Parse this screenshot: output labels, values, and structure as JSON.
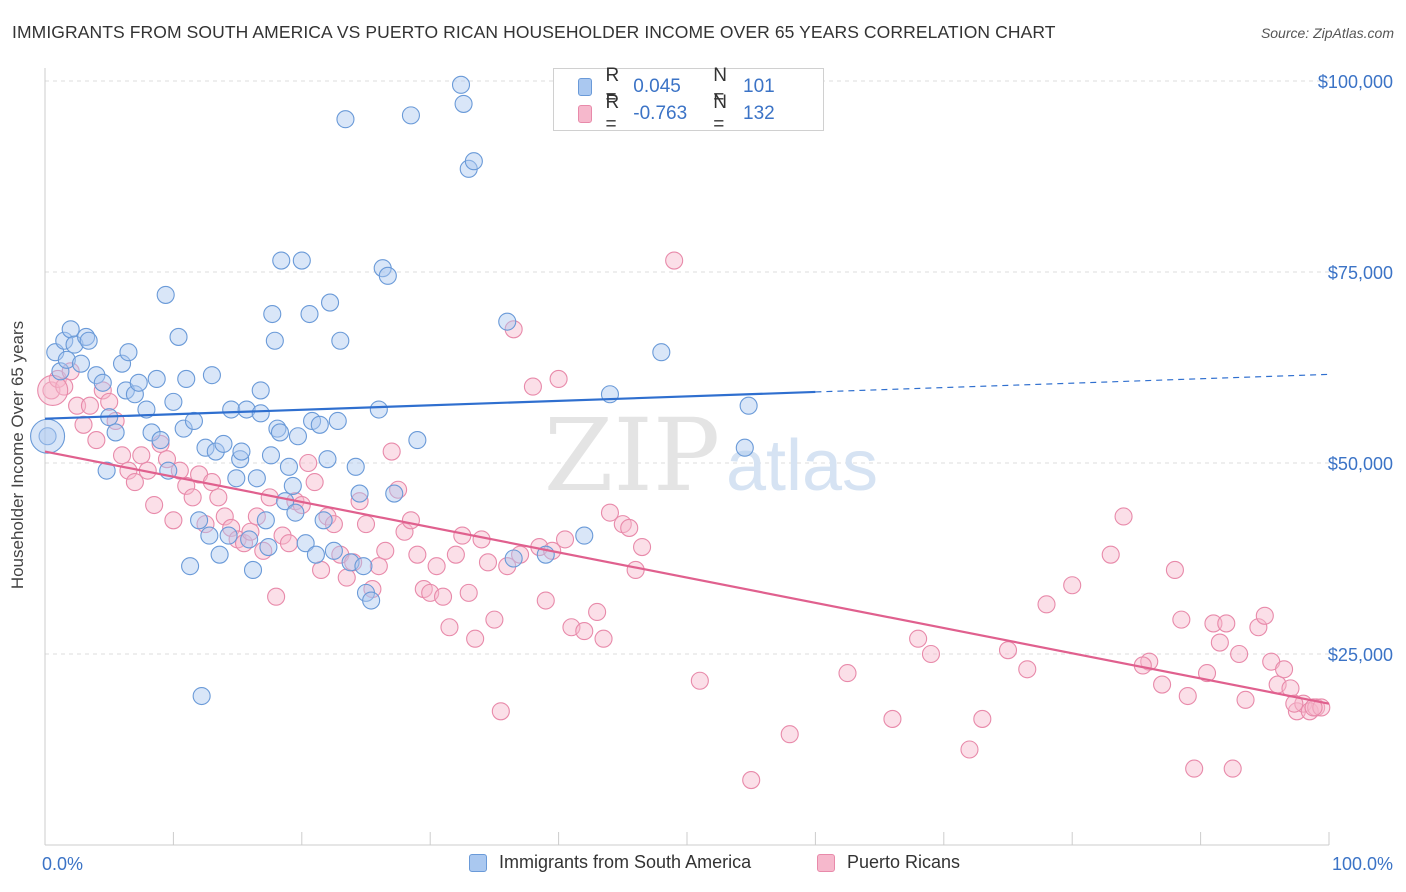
{
  "header": {
    "title": "IMMIGRANTS FROM SOUTH AMERICA VS PUERTO RICAN HOUSEHOLDER INCOME OVER 65 YEARS CORRELATION CHART",
    "source": "Source: ZipAtlas.com"
  },
  "watermark": {
    "zip": "ZIP",
    "atlas": "atlas"
  },
  "legend_top": {
    "rows": [
      {
        "r_label": "R =",
        "r_value": "0.045",
        "n_label": "N =",
        "n_value": "101"
      },
      {
        "r_label": "R =",
        "r_value": "-0.763",
        "n_label": "N =",
        "n_value": "132"
      }
    ]
  },
  "legend_bottom": {
    "items": [
      {
        "label": "Immigrants from South America"
      },
      {
        "label": "Puerto Ricans"
      }
    ]
  },
  "colors": {
    "blue_fill": "#aac8f0",
    "blue_stroke": "#6a9ad8",
    "blue_line": "#2f6fcf",
    "pink_fill": "#f6b8cc",
    "pink_stroke": "#e88aaa",
    "pink_line": "#e0608e",
    "tick_label": "#3b73c6",
    "grid": "#dcdcdc"
  },
  "chart_data": {
    "type": "scatter",
    "xlabel": "",
    "ylabel": "Householder Income Over 65 years",
    "xlim": [
      0,
      100
    ],
    "ylim": [
      0,
      105000
    ],
    "x_tick_labels": [
      "0.0%",
      "100.0%"
    ],
    "y_ticks": [
      25000,
      50000,
      75000,
      100000
    ],
    "y_tick_labels": [
      "$25,000",
      "$50,000",
      "$75,000",
      "$100,000"
    ],
    "grid": "horizontal dashed",
    "legend": "top-center",
    "series": [
      {
        "name": "Immigrants from South America",
        "color": "#aac8f0",
        "trend": {
          "x": [
            0,
            60,
            100
          ],
          "y": [
            55800,
            59300,
            61600
          ],
          "dashed_from": 60
        },
        "points": [
          [
            0.2,
            53500
          ],
          [
            0.8,
            64500
          ],
          [
            1.2,
            62000
          ],
          [
            1.5,
            66000
          ],
          [
            1.7,
            63500
          ],
          [
            2.0,
            67500
          ],
          [
            2.3,
            65500
          ],
          [
            2.8,
            63000
          ],
          [
            3.2,
            66500
          ],
          [
            3.4,
            66000
          ],
          [
            4.0,
            61500
          ],
          [
            4.5,
            60500
          ],
          [
            4.8,
            49000
          ],
          [
            5.0,
            56000
          ],
          [
            5.5,
            54000
          ],
          [
            6.0,
            63000
          ],
          [
            6.3,
            59500
          ],
          [
            6.5,
            64500
          ],
          [
            7.0,
            59000
          ],
          [
            7.3,
            60500
          ],
          [
            7.9,
            57000
          ],
          [
            8.3,
            54000
          ],
          [
            8.7,
            61000
          ],
          [
            9.0,
            53000
          ],
          [
            9.4,
            72000
          ],
          [
            9.6,
            49000
          ],
          [
            10.0,
            58000
          ],
          [
            10.4,
            66500
          ],
          [
            10.8,
            54500
          ],
          [
            11.0,
            61000
          ],
          [
            11.3,
            36500
          ],
          [
            11.6,
            55500
          ],
          [
            12.0,
            42500
          ],
          [
            12.5,
            52000
          ],
          [
            12.8,
            40500
          ],
          [
            13.0,
            61500
          ],
          [
            13.3,
            51500
          ],
          [
            13.6,
            38000
          ],
          [
            13.9,
            52500
          ],
          [
            14.3,
            40500
          ],
          [
            14.5,
            57000
          ],
          [
            14.9,
            48000
          ],
          [
            15.2,
            50500
          ],
          [
            15.7,
            57000
          ],
          [
            15.9,
            40000
          ],
          [
            16.2,
            36000
          ],
          [
            16.5,
            48000
          ],
          [
            16.8,
            59500
          ],
          [
            17.2,
            42500
          ],
          [
            17.4,
            39000
          ],
          [
            17.7,
            69500
          ],
          [
            17.9,
            66000
          ],
          [
            18.1,
            54500
          ],
          [
            18.4,
            76500
          ],
          [
            18.7,
            45000
          ],
          [
            19.0,
            49500
          ],
          [
            19.3,
            47000
          ],
          [
            19.5,
            43500
          ],
          [
            19.7,
            53500
          ],
          [
            20.0,
            76500
          ],
          [
            20.3,
            39500
          ],
          [
            20.6,
            69500
          ],
          [
            20.8,
            55500
          ],
          [
            21.1,
            38000
          ],
          [
            21.4,
            55000
          ],
          [
            21.7,
            42500
          ],
          [
            22.0,
            50500
          ],
          [
            22.2,
            71000
          ],
          [
            22.5,
            38500
          ],
          [
            22.8,
            55500
          ],
          [
            23.0,
            66000
          ],
          [
            23.4,
            95000
          ],
          [
            23.8,
            37000
          ],
          [
            24.2,
            49500
          ],
          [
            24.5,
            46000
          ],
          [
            24.8,
            36500
          ],
          [
            25.0,
            33000
          ],
          [
            25.4,
            32000
          ],
          [
            26.0,
            57000
          ],
          [
            26.3,
            75500
          ],
          [
            26.7,
            74500
          ],
          [
            27.2,
            46000
          ],
          [
            28.5,
            95500
          ],
          [
            29.0,
            53000
          ],
          [
            32.4,
            99500
          ],
          [
            32.6,
            97000
          ],
          [
            33.0,
            88500
          ],
          [
            33.4,
            89500
          ],
          [
            36.0,
            68500
          ],
          [
            36.5,
            37500
          ],
          [
            39.0,
            38000
          ],
          [
            42.0,
            40500
          ],
          [
            44.0,
            59000
          ],
          [
            48.0,
            64500
          ],
          [
            54.5,
            52000
          ],
          [
            54.8,
            57500
          ],
          [
            12.2,
            19500
          ],
          [
            16.8,
            56500
          ],
          [
            17.6,
            51000
          ],
          [
            18.3,
            54000
          ],
          [
            15.3,
            51500
          ]
        ]
      },
      {
        "name": "Puerto Ricans",
        "color": "#f6b8cc",
        "trend": {
          "x": [
            0,
            100
          ],
          "y": [
            51500,
            18500
          ]
        },
        "points": [
          [
            0.5,
            59500
          ],
          [
            1.0,
            61000
          ],
          [
            1.5,
            60000
          ],
          [
            2.0,
            62000
          ],
          [
            2.5,
            57500
          ],
          [
            3.0,
            55000
          ],
          [
            3.5,
            57500
          ],
          [
            4.0,
            53000
          ],
          [
            4.5,
            59500
          ],
          [
            5.0,
            58000
          ],
          [
            5.5,
            55500
          ],
          [
            6.0,
            51000
          ],
          [
            6.5,
            49000
          ],
          [
            7.0,
            47500
          ],
          [
            7.5,
            51000
          ],
          [
            8.0,
            49000
          ],
          [
            8.5,
            44500
          ],
          [
            9.0,
            52500
          ],
          [
            9.5,
            50500
          ],
          [
            10.0,
            42500
          ],
          [
            10.5,
            49000
          ],
          [
            11.0,
            47000
          ],
          [
            11.5,
            45500
          ],
          [
            12.0,
            48500
          ],
          [
            12.5,
            42000
          ],
          [
            13.0,
            47500
          ],
          [
            13.5,
            45500
          ],
          [
            14.0,
            43000
          ],
          [
            14.5,
            41500
          ],
          [
            15.0,
            40000
          ],
          [
            15.5,
            39500
          ],
          [
            16.0,
            41000
          ],
          [
            16.5,
            43000
          ],
          [
            17.0,
            38500
          ],
          [
            17.5,
            45500
          ],
          [
            18.0,
            32500
          ],
          [
            18.5,
            40500
          ],
          [
            19.0,
            39500
          ],
          [
            19.5,
            45000
          ],
          [
            20.0,
            44500
          ],
          [
            20.5,
            50000
          ],
          [
            21.0,
            47500
          ],
          [
            21.5,
            36000
          ],
          [
            22.0,
            43000
          ],
          [
            22.5,
            42000
          ],
          [
            23.0,
            38000
          ],
          [
            23.5,
            35000
          ],
          [
            24.0,
            37000
          ],
          [
            24.5,
            45000
          ],
          [
            25.0,
            42000
          ],
          [
            25.5,
            33500
          ],
          [
            26.0,
            36500
          ],
          [
            26.5,
            38500
          ],
          [
            27.0,
            51500
          ],
          [
            27.5,
            46500
          ],
          [
            28.0,
            41000
          ],
          [
            28.5,
            42500
          ],
          [
            29.0,
            38000
          ],
          [
            29.5,
            33500
          ],
          [
            30.0,
            33000
          ],
          [
            30.5,
            36500
          ],
          [
            31.0,
            32500
          ],
          [
            31.5,
            28500
          ],
          [
            32.0,
            38000
          ],
          [
            32.5,
            40500
          ],
          [
            33.0,
            33000
          ],
          [
            33.5,
            27000
          ],
          [
            34.0,
            40000
          ],
          [
            34.5,
            37000
          ],
          [
            35.0,
            29500
          ],
          [
            35.5,
            17500
          ],
          [
            36.0,
            36500
          ],
          [
            36.5,
            67500
          ],
          [
            37.0,
            38000
          ],
          [
            38.0,
            60000
          ],
          [
            38.5,
            39000
          ],
          [
            39.0,
            32000
          ],
          [
            39.5,
            38500
          ],
          [
            40.0,
            61000
          ],
          [
            40.5,
            40000
          ],
          [
            41.0,
            28500
          ],
          [
            42.0,
            28000
          ],
          [
            43.0,
            30500
          ],
          [
            43.5,
            27000
          ],
          [
            44.0,
            43500
          ],
          [
            45.0,
            42000
          ],
          [
            45.5,
            41500
          ],
          [
            46.0,
            36000
          ],
          [
            46.5,
            39000
          ],
          [
            49.0,
            76500
          ],
          [
            51.0,
            21500
          ],
          [
            55.0,
            8500
          ],
          [
            58.0,
            14500
          ],
          [
            62.5,
            22500
          ],
          [
            66.0,
            16500
          ],
          [
            68.0,
            27000
          ],
          [
            69.0,
            25000
          ],
          [
            72.0,
            12500
          ],
          [
            73.0,
            16500
          ],
          [
            75.0,
            25500
          ],
          [
            76.5,
            23000
          ],
          [
            78.0,
            31500
          ],
          [
            80.0,
            34000
          ],
          [
            83.0,
            38000
          ],
          [
            84.0,
            43000
          ],
          [
            86.0,
            24000
          ],
          [
            87.0,
            21000
          ],
          [
            88.0,
            36000
          ],
          [
            88.5,
            29500
          ],
          [
            89.0,
            19500
          ],
          [
            89.5,
            10000
          ],
          [
            90.5,
            22500
          ],
          [
            91.0,
            29000
          ],
          [
            91.5,
            26500
          ],
          [
            92.0,
            29000
          ],
          [
            92.5,
            10000
          ],
          [
            93.0,
            25000
          ],
          [
            93.5,
            19000
          ],
          [
            94.5,
            28500
          ],
          [
            95.0,
            30000
          ],
          [
            95.5,
            24000
          ],
          [
            96.0,
            21000
          ],
          [
            96.5,
            23000
          ],
          [
            97.0,
            20500
          ],
          [
            97.5,
            17500
          ],
          [
            98.0,
            18500
          ],
          [
            98.5,
            17500
          ],
          [
            99.0,
            18000
          ],
          [
            99.4,
            18000
          ],
          [
            85.5,
            23500
          ],
          [
            97.3,
            18500
          ],
          [
            98.8,
            18000
          ]
        ]
      }
    ]
  }
}
